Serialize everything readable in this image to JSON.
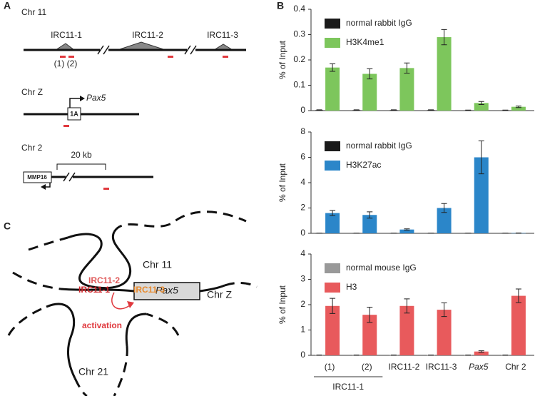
{
  "panel_labels": {
    "a": "A",
    "b": "B",
    "c": "C"
  },
  "panel_a": {
    "chr11": "Chr 11",
    "irc11_1": "IRC11-1",
    "irc11_2": "IRC11-2",
    "irc11_3": "IRC11-3",
    "site1": "(1)",
    "site2": "(2)",
    "chrz": "Chr Z",
    "exon": "1A",
    "gene": "Pax5",
    "chr2": "Chr 2",
    "scale": "20 kb",
    "mmp16": "MMP16"
  },
  "panel_c": {
    "chr11": "Chr 11",
    "irc11_2": "IRC11-2",
    "irc11_1": "IRC11-1",
    "irc11_3": "IRC11-3",
    "chrz": "Chr Z",
    "gene": "Pax5",
    "activation": "activation",
    "chr21": "Chr 21"
  },
  "chart_data": [
    {
      "type": "bar",
      "ylabel": "% of Input",
      "ylim": [
        0,
        0.4
      ],
      "yticks": [
        0,
        0.1,
        0.2,
        0.3,
        0.4
      ],
      "series": [
        {
          "name": "normal rabbit IgG",
          "color": "#1a1a1a",
          "values": [
            0.002,
            0.002,
            0.002,
            0.002,
            0.001,
            0.001
          ],
          "errors": [
            0.001,
            0.001,
            0.001,
            0.001,
            0.001,
            0.001
          ]
        },
        {
          "name": "H3K4me1",
          "color": "#7dc65c",
          "values": [
            0.17,
            0.145,
            0.168,
            0.29,
            0.03,
            0.015
          ],
          "errors": [
            0.015,
            0.02,
            0.02,
            0.03,
            0.006,
            0.003
          ]
        }
      ]
    },
    {
      "type": "bar",
      "ylabel": "% of Input",
      "ylim": [
        0,
        8
      ],
      "yticks": [
        0,
        2,
        4,
        6,
        8
      ],
      "series": [
        {
          "name": "normal rabbit IgG",
          "color": "#1a1a1a",
          "values": [
            0.01,
            0.01,
            0.01,
            0.01,
            0.01,
            0.01
          ],
          "errors": [
            0.005,
            0.005,
            0.005,
            0.005,
            0.005,
            0.005
          ]
        },
        {
          "name": "H3K27ac",
          "color": "#2b86c9",
          "values": [
            1.6,
            1.45,
            0.3,
            2.0,
            6.0,
            0.02
          ],
          "errors": [
            0.2,
            0.25,
            0.05,
            0.35,
            1.3,
            0.01
          ]
        }
      ]
    },
    {
      "type": "bar",
      "ylabel": "% of Input",
      "ylim": [
        0,
        4
      ],
      "yticks": [
        0,
        1,
        2,
        3,
        4
      ],
      "categories": [
        "(1)",
        "(2)",
        "IRC11-2",
        "IRC11-3",
        "Pax5",
        "Chr 2"
      ],
      "group_label": "IRC11-1",
      "series": [
        {
          "name": "normal mouse IgG",
          "color": "#999999",
          "values": [
            0.01,
            0.01,
            0.01,
            0.01,
            0.01,
            0.01
          ],
          "errors": [
            0.005,
            0.005,
            0.005,
            0.005,
            0.005,
            0.005
          ]
        },
        {
          "name": "H3",
          "color": "#e85a5c",
          "values": [
            1.95,
            1.6,
            1.95,
            1.8,
            0.15,
            2.35
          ],
          "errors": [
            0.3,
            0.3,
            0.28,
            0.27,
            0.03,
            0.27
          ]
        }
      ]
    }
  ]
}
